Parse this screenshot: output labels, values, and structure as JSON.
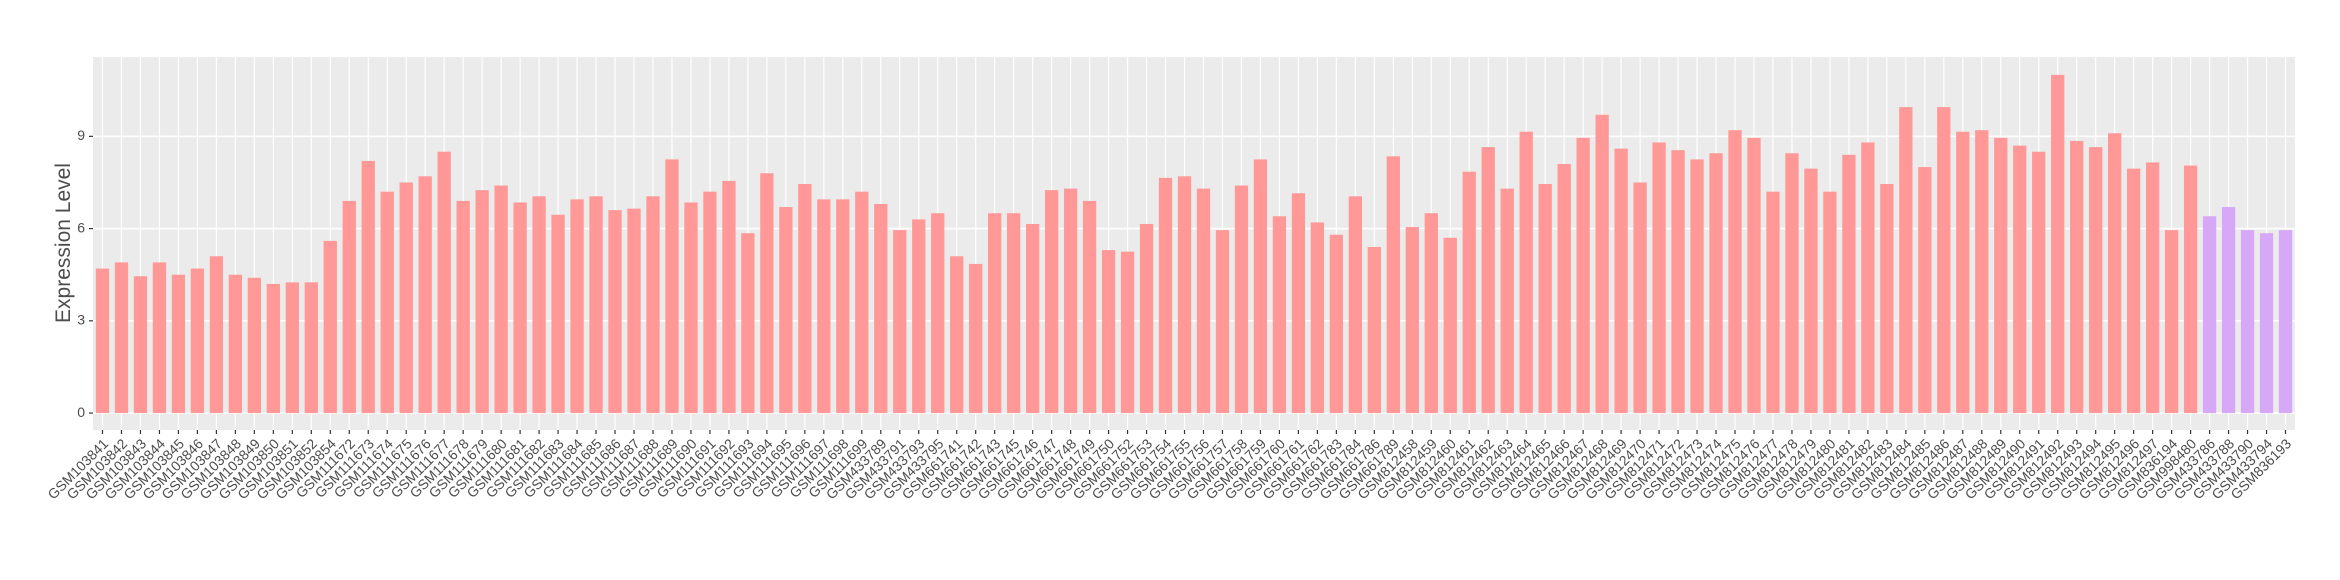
{
  "chart_data": {
    "type": "bar",
    "y_label": "Expression Level",
    "categories": [
      "GSM103841",
      "GSM103842",
      "GSM103843",
      "GSM103844",
      "GSM103845",
      "GSM103846",
      "GSM103847",
      "GSM103848",
      "GSM103849",
      "GSM103850",
      "GSM103851",
      "GSM103852",
      "GSM103854",
      "GSM111672",
      "GSM111673",
      "GSM111674",
      "GSM111675",
      "GSM111676",
      "GSM111677",
      "GSM111678",
      "GSM111679",
      "GSM111680",
      "GSM111681",
      "GSM111682",
      "GSM111683",
      "GSM111684",
      "GSM111685",
      "GSM111686",
      "GSM111687",
      "GSM111688",
      "GSM111689",
      "GSM111690",
      "GSM111691",
      "GSM111692",
      "GSM111693",
      "GSM111694",
      "GSM111695",
      "GSM111696",
      "GSM111697",
      "GSM111698",
      "GSM111699",
      "GSM433789",
      "GSM433791",
      "GSM433793",
      "GSM433795",
      "GSM661741",
      "GSM661742",
      "GSM661743",
      "GSM661745",
      "GSM661746",
      "GSM661747",
      "GSM661748",
      "GSM661749",
      "GSM661750",
      "GSM661752",
      "GSM661753",
      "GSM661754",
      "GSM661755",
      "GSM661756",
      "GSM661757",
      "GSM661758",
      "GSM661759",
      "GSM661760",
      "GSM661761",
      "GSM661762",
      "GSM661783",
      "GSM661784",
      "GSM661786",
      "GSM661789",
      "GSM812458",
      "GSM812459",
      "GSM812460",
      "GSM812461",
      "GSM812462",
      "GSM812463",
      "GSM812464",
      "GSM812465",
      "GSM812466",
      "GSM812467",
      "GSM812468",
      "GSM812469",
      "GSM812470",
      "GSM812471",
      "GSM812472",
      "GSM812473",
      "GSM812474",
      "GSM812475",
      "GSM812476",
      "GSM812477",
      "GSM812478",
      "GSM812479",
      "GSM812480",
      "GSM812481",
      "GSM812482",
      "GSM812483",
      "GSM812484",
      "GSM812485",
      "GSM812486",
      "GSM812487",
      "GSM812488",
      "GSM812489",
      "GSM812490",
      "GSM812491",
      "GSM812492",
      "GSM812493",
      "GSM812494",
      "GSM812495",
      "GSM812496",
      "GSM812497",
      "GSM836194",
      "GSM998480",
      "GSM433786",
      "GSM433788",
      "GSM433790",
      "GSM433794",
      "GSM836193"
    ],
    "series": [
      {
        "color": "#ff9896",
        "values": [
          4.7,
          4.9,
          4.45,
          4.9,
          4.5,
          4.7,
          5.1,
          4.5,
          4.4,
          4.2,
          4.25,
          4.25,
          5.6,
          6.9,
          8.2,
          7.2,
          7.5,
          7.7,
          8.5,
          6.9,
          7.25,
          7.4,
          6.85,
          7.05,
          6.45,
          6.95,
          7.05,
          6.6,
          6.65,
          7.05,
          8.25,
          6.85,
          7.2,
          7.55,
          5.85,
          7.8,
          6.7,
          7.45,
          6.95,
          6.95,
          7.2,
          6.8,
          5.95,
          6.3,
          6.5,
          5.1,
          4.85,
          6.5,
          6.5,
          6.15,
          7.25,
          7.3,
          6.9,
          5.3,
          5.25,
          6.15,
          7.65,
          7.7,
          7.3,
          5.95,
          7.4,
          8.25,
          6.4,
          7.15,
          6.2,
          5.8,
          7.05,
          5.4,
          8.35,
          6.05,
          6.5,
          5.7,
          7.85,
          8.65,
          7.3,
          9.15,
          7.45,
          8.1,
          8.95,
          9.7,
          8.6,
          7.5,
          8.8,
          8.55,
          8.25,
          8.45,
          9.2,
          8.95,
          7.2,
          8.45,
          7.95,
          7.2,
          8.4,
          8.8,
          7.45,
          9.95,
          8.0,
          9.95,
          9.15,
          9.2,
          8.95,
          8.7,
          8.5,
          11.0,
          8.85,
          8.65,
          9.1,
          7.95,
          8.15,
          5.95,
          8.05,
          null,
          null,
          null,
          null,
          null
        ]
      },
      {
        "color": "#d6a8f7",
        "values": [
          null,
          null,
          null,
          null,
          null,
          null,
          null,
          null,
          null,
          null,
          null,
          null,
          null,
          null,
          null,
          null,
          null,
          null,
          null,
          null,
          null,
          null,
          null,
          null,
          null,
          null,
          null,
          null,
          null,
          null,
          null,
          null,
          null,
          null,
          null,
          null,
          null,
          null,
          null,
          null,
          null,
          null,
          null,
          null,
          null,
          null,
          null,
          null,
          null,
          null,
          null,
          null,
          null,
          null,
          null,
          null,
          null,
          null,
          null,
          null,
          null,
          null,
          null,
          null,
          null,
          null,
          null,
          null,
          null,
          null,
          null,
          null,
          null,
          null,
          null,
          null,
          null,
          null,
          null,
          null,
          null,
          null,
          null,
          null,
          null,
          null,
          null,
          null,
          null,
          null,
          null,
          null,
          null,
          null,
          null,
          null,
          null,
          null,
          null,
          null,
          null,
          null,
          null,
          null,
          null,
          null,
          null,
          null,
          null,
          null,
          null,
          6.4,
          6.7,
          5.95,
          5.85,
          5.95
        ]
      }
    ],
    "ylim": [
      -0.55,
      11.58
    ],
    "yticks": [
      0,
      3,
      6,
      9
    ],
    "grid": true
  }
}
